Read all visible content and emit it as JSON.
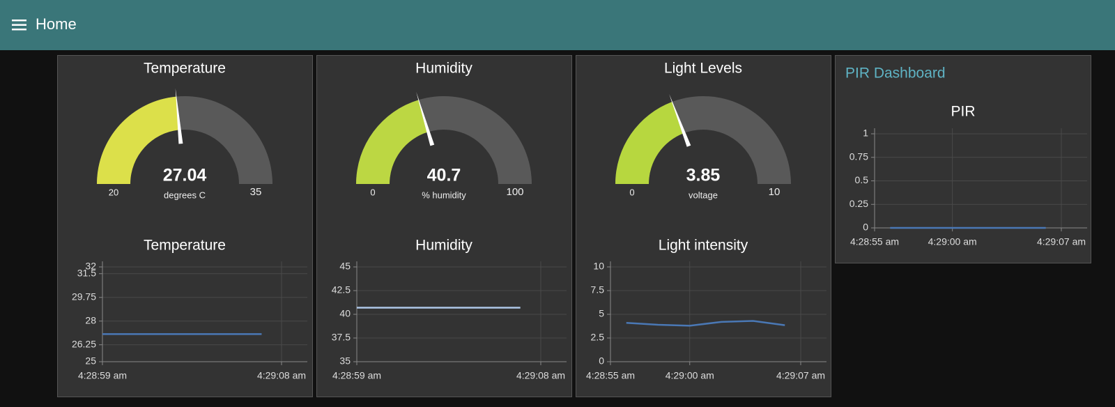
{
  "header": {
    "title": "Home"
  },
  "group_title": "PIR Dashboard",
  "chart_data": [
    {
      "type": "gauge",
      "title": "Temperature",
      "value": 27.04,
      "units": "degrees C",
      "ylim": [
        20,
        35
      ],
      "color": "#dce04a",
      "track_color": "#595959"
    },
    {
      "type": "line",
      "title": "Temperature",
      "x": [
        "4:28:59 am",
        "4:29:07 am"
      ],
      "series": [
        {
          "color": "#4a78b5",
          "values": [
            27.04,
            27.04
          ]
        }
      ],
      "ylim": [
        25,
        32
      ],
      "yticks": [
        25,
        26.25,
        28,
        29.75,
        31.5,
        32
      ],
      "xticks": [
        "4:28:59 am",
        "4:29:08 am"
      ],
      "grid": true
    },
    {
      "type": "gauge",
      "title": "Humidity",
      "value": 40.7,
      "units": "% humidity",
      "ylim": [
        0,
        100
      ],
      "color": "#bcd743",
      "track_color": "#595959"
    },
    {
      "type": "line",
      "title": "Humidity",
      "x": [
        "4:28:59 am",
        "4:29:07 am"
      ],
      "series": [
        {
          "color": "#aec7e8",
          "values": [
            40.7,
            40.7
          ]
        }
      ],
      "ylim": [
        35,
        45
      ],
      "yticks": [
        35,
        37.5,
        40,
        42.5,
        45
      ],
      "xticks": [
        "4:28:59 am",
        "4:29:08 am"
      ],
      "grid": true
    },
    {
      "type": "gauge",
      "title": "Light Levels",
      "value": 3.85,
      "units": "voltage",
      "ylim": [
        0,
        10
      ],
      "color": "#b7d73f",
      "track_color": "#595959"
    },
    {
      "type": "line",
      "title": "Light intensity",
      "x": [
        "4:28:56 am",
        "4:28:58 am",
        "4:29:00 am",
        "4:29:02 am",
        "4:29:04 am",
        "4:29:06 am"
      ],
      "series": [
        {
          "color": "#4a78b5",
          "values": [
            4.1,
            3.9,
            3.8,
            4.2,
            4.3,
            3.85
          ]
        }
      ],
      "ylim": [
        0,
        10
      ],
      "yticks": [
        0,
        2.5,
        5,
        7.5,
        10
      ],
      "xticks": [
        "4:28:55 am",
        "4:29:00 am",
        "4:29:07 am"
      ],
      "grid": true
    },
    {
      "type": "line",
      "title": "PIR",
      "x": [
        "4:28:56 am",
        "4:29:06 am"
      ],
      "series": [
        {
          "color": "#4a78b5",
          "values": [
            0,
            0
          ]
        }
      ],
      "ylim": [
        0,
        1
      ],
      "yticks": [
        0,
        0.25,
        0.5,
        0.75,
        1
      ],
      "xticks": [
        "4:28:55 am",
        "4:29:00 am",
        "4:29:07 am"
      ],
      "grid": true
    }
  ]
}
